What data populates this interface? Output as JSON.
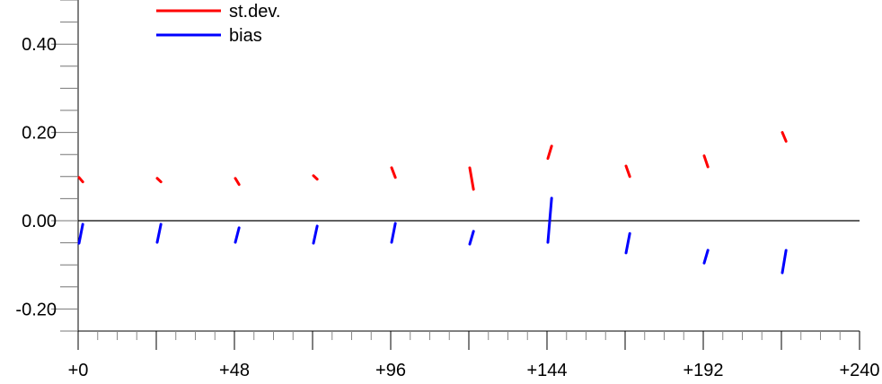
{
  "chart_data": {
    "type": "line",
    "title": "",
    "xlabel": "",
    "ylabel": "",
    "xlim": [
      0,
      240
    ],
    "ylim": [
      -0.25,
      0.5
    ],
    "x_tick_labels": [
      "+0",
      "+48",
      "+96",
      "+144",
      "+192",
      "+240"
    ],
    "x_tick_values": [
      0,
      48,
      96,
      144,
      192,
      240
    ],
    "y_tick_labels": [
      "0.40",
      "0.20",
      "0.00",
      "-0.20"
    ],
    "y_tick_values": [
      0.4,
      0.2,
      0.0,
      -0.2
    ],
    "grid": false,
    "zero_line": true,
    "legend_position": "top-left",
    "segment_starts": [
      0,
      24,
      48,
      72,
      96,
      120,
      144,
      168,
      192,
      216
    ],
    "series": [
      {
        "name": "st.dev.",
        "color": "#ff0000",
        "start_values": [
          0.098,
          0.096,
          0.096,
          0.102,
          0.12,
          0.12,
          0.141,
          0.124,
          0.147,
          0.2
        ],
        "end_values": [
          0.088,
          0.088,
          0.082,
          0.094,
          0.098,
          0.071,
          0.169,
          0.1,
          0.122,
          0.18
        ]
      },
      {
        "name": "bias",
        "color": "#0000ff",
        "start_values": [
          -0.051,
          -0.049,
          -0.049,
          -0.051,
          -0.049,
          -0.053,
          -0.049,
          -0.073,
          -0.096,
          -0.118
        ],
        "end_values": [
          -0.008,
          -0.008,
          -0.016,
          -0.012,
          -0.006,
          -0.024,
          0.051,
          -0.029,
          -0.067,
          -0.067
        ]
      }
    ]
  }
}
